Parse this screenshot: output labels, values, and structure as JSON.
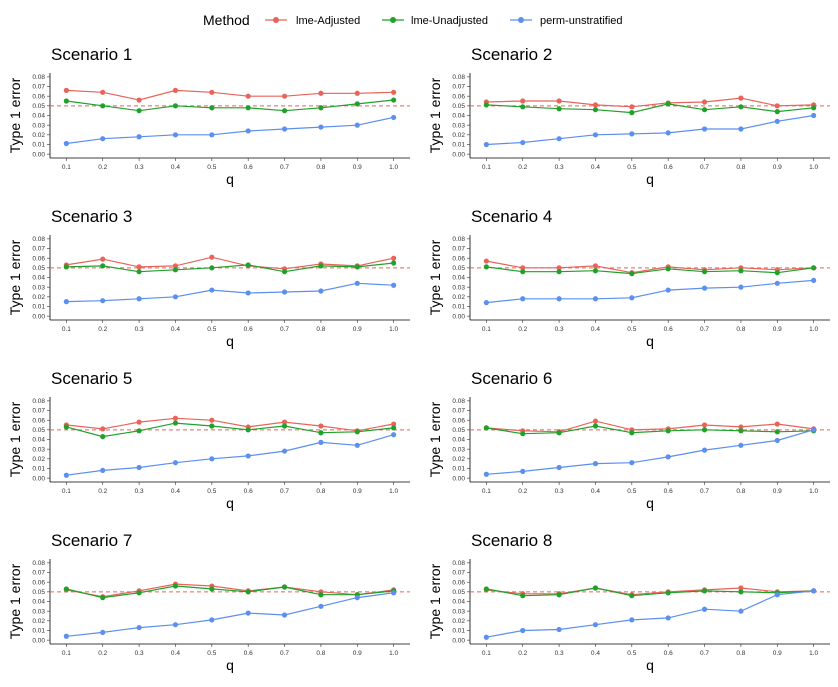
{
  "legend": {
    "title": "Method",
    "position": "top",
    "entries": [
      {
        "name": "lme-Adjusted",
        "color": "#E8645A"
      },
      {
        "name": "lme-Unadjusted",
        "color": "#1FA12A"
      },
      {
        "name": "perm-unstratified",
        "color": "#5B8FF0"
      }
    ]
  },
  "reference_line": {
    "y": 0.05,
    "style": "dashed",
    "color": "#E8645A"
  },
  "chart_data": [
    {
      "type": "line",
      "title": "Scenario 1",
      "xlabel": "q",
      "ylabel": "Type 1 error",
      "ylim": [
        0,
        0.08
      ],
      "x": [
        0.1,
        0.2,
        0.3,
        0.4,
        0.5,
        0.6,
        0.7,
        0.8,
        0.9,
        1.0
      ],
      "x_tick_labels": [
        "0.1",
        "0.2",
        "0.3",
        "0.4",
        "0.5",
        "0.6",
        "0.7",
        "0.8",
        "0.9",
        "1.0"
      ],
      "y_ticks": [
        0,
        0.01,
        0.02,
        0.03,
        0.04,
        0.05,
        0.06,
        0.07,
        0.08
      ],
      "y_tick_labels": [
        "0.00",
        "0.01",
        "0.02",
        "0.03",
        "0.04",
        "0.05",
        "0.06",
        "0.07",
        "0.08"
      ],
      "series": [
        {
          "name": "lme-Adjusted",
          "values": [
            0.066,
            0.064,
            0.056,
            0.066,
            0.064,
            0.06,
            0.06,
            0.063,
            0.063,
            0.064
          ]
        },
        {
          "name": "lme-Unadjusted",
          "values": [
            0.055,
            0.05,
            0.045,
            0.05,
            0.048,
            0.048,
            0.045,
            0.048,
            0.052,
            0.056
          ]
        },
        {
          "name": "perm-unstratified",
          "values": [
            0.011,
            0.016,
            0.018,
            0.02,
            0.02,
            0.024,
            0.026,
            0.028,
            0.03,
            0.038
          ]
        }
      ]
    },
    {
      "type": "line",
      "title": "Scenario 2",
      "xlabel": "q",
      "ylabel": "Type 1 error",
      "ylim": [
        0,
        0.08
      ],
      "x": [
        0.1,
        0.2,
        0.3,
        0.4,
        0.5,
        0.6,
        0.7,
        0.8,
        0.9,
        1.0
      ],
      "x_tick_labels": [
        "0.1",
        "0.2",
        "0.3",
        "0.4",
        "0.5",
        "0.6",
        "0.7",
        "0.8",
        "0.9",
        "1.0"
      ],
      "y_ticks": [
        0,
        0.01,
        0.02,
        0.03,
        0.04,
        0.05,
        0.06,
        0.07,
        0.08
      ],
      "y_tick_labels": [
        "0.00",
        "0.01",
        "0.02",
        "0.03",
        "0.04",
        "0.05",
        "0.06",
        "0.07",
        "0.08"
      ],
      "series": [
        {
          "name": "lme-Adjusted",
          "values": [
            0.054,
            0.055,
            0.055,
            0.051,
            0.049,
            0.053,
            0.054,
            0.058,
            0.05,
            0.051
          ]
        },
        {
          "name": "lme-Unadjusted",
          "values": [
            0.051,
            0.049,
            0.047,
            0.046,
            0.043,
            0.052,
            0.046,
            0.049,
            0.044,
            0.048
          ]
        },
        {
          "name": "perm-unstratified",
          "values": [
            0.01,
            0.012,
            0.016,
            0.02,
            0.021,
            0.022,
            0.026,
            0.026,
            0.034,
            0.04
          ]
        }
      ]
    },
    {
      "type": "line",
      "title": "Scenario 3",
      "xlabel": "q",
      "ylabel": "Type 1 error",
      "ylim": [
        0,
        0.08
      ],
      "x": [
        0.1,
        0.2,
        0.3,
        0.4,
        0.5,
        0.6,
        0.7,
        0.8,
        0.9,
        1.0
      ],
      "x_tick_labels": [
        "0.1",
        "0.2",
        "0.3",
        "0.4",
        "0.5",
        "0.6",
        "0.7",
        "0.8",
        "0.9",
        "1.0"
      ],
      "y_ticks": [
        0,
        0.01,
        0.02,
        0.03,
        0.04,
        0.05,
        0.06,
        0.07,
        0.08
      ],
      "y_tick_labels": [
        "0.00",
        "0.01",
        "0.02",
        "0.03",
        "0.04",
        "0.05",
        "0.06",
        "0.07",
        "0.08"
      ],
      "series": [
        {
          "name": "lme-Adjusted",
          "values": [
            0.053,
            0.059,
            0.051,
            0.052,
            0.061,
            0.052,
            0.049,
            0.054,
            0.052,
            0.06
          ]
        },
        {
          "name": "lme-Unadjusted",
          "values": [
            0.051,
            0.052,
            0.046,
            0.048,
            0.05,
            0.053,
            0.046,
            0.052,
            0.051,
            0.055
          ]
        },
        {
          "name": "perm-unstratified",
          "values": [
            0.015,
            0.016,
            0.018,
            0.02,
            0.027,
            0.024,
            0.025,
            0.026,
            0.034,
            0.032
          ]
        }
      ]
    },
    {
      "type": "line",
      "title": "Scenario 4",
      "xlabel": "q",
      "ylabel": "Type 1 error",
      "ylim": [
        0,
        0.08
      ],
      "x": [
        0.1,
        0.2,
        0.3,
        0.4,
        0.5,
        0.6,
        0.7,
        0.8,
        0.9,
        1.0
      ],
      "x_tick_labels": [
        "0.1",
        "0.2",
        "0.3",
        "0.4",
        "0.5",
        "0.6",
        "0.7",
        "0.8",
        "0.9",
        "1.0"
      ],
      "y_ticks": [
        0,
        0.01,
        0.02,
        0.03,
        0.04,
        0.05,
        0.06,
        0.07,
        0.08
      ],
      "y_tick_labels": [
        "0.00",
        "0.01",
        "0.02",
        "0.03",
        "0.04",
        "0.05",
        "0.06",
        "0.07",
        "0.08"
      ],
      "series": [
        {
          "name": "lme-Adjusted",
          "values": [
            0.057,
            0.05,
            0.05,
            0.052,
            0.045,
            0.051,
            0.048,
            0.05,
            0.048,
            0.05
          ]
        },
        {
          "name": "lme-Unadjusted",
          "values": [
            0.051,
            0.046,
            0.046,
            0.047,
            0.044,
            0.049,
            0.046,
            0.047,
            0.045,
            0.05
          ]
        },
        {
          "name": "perm-unstratified",
          "values": [
            0.014,
            0.018,
            0.018,
            0.018,
            0.019,
            0.027,
            0.029,
            0.03,
            0.034,
            0.037
          ]
        }
      ]
    },
    {
      "type": "line",
      "title": "Scenario 5",
      "xlabel": "q",
      "ylabel": "Type 1 error",
      "ylim": [
        0,
        0.08
      ],
      "x": [
        0.1,
        0.2,
        0.3,
        0.4,
        0.5,
        0.6,
        0.7,
        0.8,
        0.9,
        1.0
      ],
      "x_tick_labels": [
        "0.1",
        "0.2",
        "0.3",
        "0.4",
        "0.5",
        "0.6",
        "0.7",
        "0.8",
        "0.9",
        "1.0"
      ],
      "y_ticks": [
        0,
        0.01,
        0.02,
        0.03,
        0.04,
        0.05,
        0.06,
        0.07,
        0.08
      ],
      "y_tick_labels": [
        "0.00",
        "0.01",
        "0.02",
        "0.03",
        "0.04",
        "0.05",
        "0.06",
        "0.07",
        "0.08"
      ],
      "series": [
        {
          "name": "lme-Adjusted",
          "values": [
            0.055,
            0.051,
            0.058,
            0.062,
            0.06,
            0.053,
            0.058,
            0.054,
            0.049,
            0.056
          ]
        },
        {
          "name": "lme-Unadjusted",
          "values": [
            0.053,
            0.043,
            0.049,
            0.057,
            0.054,
            0.05,
            0.054,
            0.047,
            0.048,
            0.052
          ]
        },
        {
          "name": "perm-unstratified",
          "values": [
            0.003,
            0.008,
            0.011,
            0.016,
            0.02,
            0.023,
            0.028,
            0.037,
            0.034,
            0.045
          ]
        }
      ]
    },
    {
      "type": "line",
      "title": "Scenario 6",
      "xlabel": "q",
      "ylabel": "Type 1 error",
      "ylim": [
        0,
        0.08
      ],
      "x": [
        0.1,
        0.2,
        0.3,
        0.4,
        0.5,
        0.6,
        0.7,
        0.8,
        0.9,
        1.0
      ],
      "x_tick_labels": [
        "0.1",
        "0.2",
        "0.3",
        "0.4",
        "0.5",
        "0.6",
        "0.7",
        "0.8",
        "0.9",
        "1.0"
      ],
      "y_ticks": [
        0,
        0.01,
        0.02,
        0.03,
        0.04,
        0.05,
        0.06,
        0.07,
        0.08
      ],
      "y_tick_labels": [
        "0.00",
        "0.01",
        "0.02",
        "0.03",
        "0.04",
        "0.05",
        "0.06",
        "0.07",
        "0.08"
      ],
      "series": [
        {
          "name": "lme-Adjusted",
          "values": [
            0.052,
            0.049,
            0.048,
            0.059,
            0.05,
            0.051,
            0.055,
            0.053,
            0.056,
            0.051
          ]
        },
        {
          "name": "lme-Unadjusted",
          "values": [
            0.052,
            0.046,
            0.047,
            0.054,
            0.047,
            0.049,
            0.05,
            0.049,
            0.048,
            0.049
          ]
        },
        {
          "name": "perm-unstratified",
          "values": [
            0.004,
            0.007,
            0.011,
            0.015,
            0.016,
            0.022,
            0.029,
            0.034,
            0.039,
            0.05
          ]
        }
      ]
    },
    {
      "type": "line",
      "title": "Scenario 7",
      "xlabel": "q",
      "ylabel": "Type 1 error",
      "ylim": [
        0,
        0.08
      ],
      "x": [
        0.1,
        0.2,
        0.3,
        0.4,
        0.5,
        0.6,
        0.7,
        0.8,
        0.9,
        1.0
      ],
      "x_tick_labels": [
        "0.1",
        "0.2",
        "0.3",
        "0.4",
        "0.5",
        "0.6",
        "0.7",
        "0.8",
        "0.9",
        "1.0"
      ],
      "y_ticks": [
        0,
        0.01,
        0.02,
        0.03,
        0.04,
        0.05,
        0.06,
        0.07,
        0.08
      ],
      "y_tick_labels": [
        "0.00",
        "0.01",
        "0.02",
        "0.03",
        "0.04",
        "0.05",
        "0.06",
        "0.07",
        "0.08"
      ],
      "series": [
        {
          "name": "lme-Adjusted",
          "values": [
            0.052,
            0.045,
            0.051,
            0.058,
            0.056,
            0.051,
            0.055,
            0.05,
            0.047,
            0.052
          ]
        },
        {
          "name": "lme-Unadjusted",
          "values": [
            0.053,
            0.044,
            0.049,
            0.056,
            0.053,
            0.05,
            0.055,
            0.047,
            0.047,
            0.051
          ]
        },
        {
          "name": "perm-unstratified",
          "values": [
            0.004,
            0.008,
            0.013,
            0.016,
            0.021,
            0.028,
            0.026,
            0.035,
            0.044,
            0.049
          ]
        }
      ]
    },
    {
      "type": "line",
      "title": "Scenario 8",
      "xlabel": "q",
      "ylabel": "Type 1 error",
      "ylim": [
        0,
        0.08
      ],
      "x": [
        0.1,
        0.2,
        0.3,
        0.4,
        0.5,
        0.6,
        0.7,
        0.8,
        0.9,
        1.0
      ],
      "x_tick_labels": [
        "0.1",
        "0.2",
        "0.3",
        "0.4",
        "0.5",
        "0.6",
        "0.7",
        "0.8",
        "0.9",
        "1.0"
      ],
      "y_ticks": [
        0,
        0.01,
        0.02,
        0.03,
        0.04,
        0.05,
        0.06,
        0.07,
        0.08
      ],
      "y_tick_labels": [
        "0.00",
        "0.01",
        "0.02",
        "0.03",
        "0.04",
        "0.05",
        "0.06",
        "0.07",
        "0.08"
      ],
      "series": [
        {
          "name": "lme-Adjusted",
          "values": [
            0.052,
            0.048,
            0.048,
            0.054,
            0.047,
            0.05,
            0.052,
            0.054,
            0.05,
            0.051
          ]
        },
        {
          "name": "lme-Unadjusted",
          "values": [
            0.053,
            0.046,
            0.047,
            0.054,
            0.046,
            0.049,
            0.051,
            0.05,
            0.049,
            0.051
          ]
        },
        {
          "name": "perm-unstratified",
          "values": [
            0.003,
            0.01,
            0.011,
            0.016,
            0.021,
            0.023,
            0.032,
            0.03,
            0.047,
            0.051
          ]
        }
      ]
    }
  ]
}
